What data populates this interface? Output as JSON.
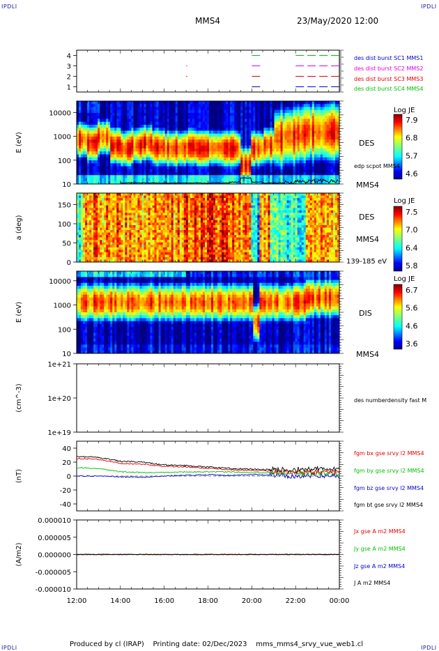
{
  "corners": {
    "tl": "IPDLI",
    "tr": "IPDLI",
    "bl": "IPDLI",
    "br": "IPDLI"
  },
  "header": {
    "spacecraft": "MMS4",
    "datetime": "23/May/2020 12:00"
  },
  "footer": {
    "produced_by": "Produced by cl (IRAP)",
    "printing_date": "Printing date: 02/Dec/2023",
    "script": "mms_mms4_srvy_vue_web1.cl"
  },
  "colors": {
    "red": "#e00000",
    "magenta": "#e000e0",
    "green": "#00c000",
    "blue": "#0000d0",
    "black": "#000000"
  },
  "chart_data": [
    {
      "type": "scatter",
      "panel": "availability",
      "yticks": [
        "1",
        "2",
        "3",
        "4"
      ],
      "ylim": [
        0.5,
        4.5
      ],
      "series": [
        {
          "name": "des dist burst SC1 MMS1",
          "level": 4,
          "color": "#0000d0",
          "intervals": [
            [
              20.0,
              20.4
            ],
            [
              22.0,
              24.0
            ]
          ]
        },
        {
          "name": "des dist burst SC2 MMS2",
          "level": 3,
          "color": "#e000e0",
          "intervals": [
            [
              17.0,
              17.05
            ],
            [
              20.0,
              20.4
            ],
            [
              22.0,
              24.0
            ]
          ]
        },
        {
          "name": "des dist burst SC3 MMS3",
          "level": 2,
          "color": "#e00000",
          "intervals": [
            [
              17.0,
              17.05
            ],
            [
              20.0,
              20.4
            ],
            [
              22.0,
              24.0
            ]
          ]
        },
        {
          "name": "des dist burst SC4 MMS4",
          "level": 1,
          "color": "#00c000",
          "intervals": [
            [
              20.0,
              20.4
            ],
            [
              22.0,
              24.0
            ]
          ]
        }
      ]
    },
    {
      "type": "heatmap",
      "panel": "des-energy",
      "ylabel": "E (eV)",
      "yscale": "log",
      "ylim": [
        10,
        30000
      ],
      "yticks": [
        "10",
        "100",
        "1000",
        "10000"
      ],
      "label": "DES",
      "colorbar": {
        "title": "Log JE",
        "ticks": [
          "7.9",
          "6.8",
          "5.7",
          "4.6"
        ],
        "range": [
          4.6,
          7.9
        ]
      },
      "overlay": {
        "name": "edp scpot MMS4",
        "color": "#000000",
        "values": [
          10,
          10,
          11,
          11,
          11,
          11,
          11,
          11,
          11,
          11,
          11,
          11,
          11,
          11,
          12,
          18,
          12,
          11,
          11,
          12,
          13,
          13,
          14,
          13
        ]
      },
      "peak_energy_by_hour": [
        700,
        500,
        900,
        400,
        300,
        400,
        500,
        350,
        300,
        300,
        350,
        300,
        320,
        300,
        300,
        60,
        300,
        400,
        800,
        1000,
        1200,
        1500,
        1500,
        1500
      ],
      "footer_label": "MMS4"
    },
    {
      "type": "heatmap",
      "panel": "des-pitch",
      "ylabel": "a (deg)",
      "ylim": [
        0,
        180
      ],
      "yticks": [
        "0",
        "50",
        "100",
        "150"
      ],
      "label": "DES",
      "sublabel": "MMS4",
      "energy_band": "139-185 eV",
      "colorbar": {
        "title": "Log JE",
        "ticks": [
          "7.5",
          "7.0",
          "6.4",
          "5.8"
        ],
        "range": [
          5.8,
          7.5
        ]
      }
    },
    {
      "type": "heatmap",
      "panel": "dis-energy",
      "ylabel": "E (eV)",
      "yscale": "log",
      "ylim": [
        10,
        25000
      ],
      "yticks": [
        "10",
        "100",
        "1000",
        "10000"
      ],
      "label": "DIS",
      "colorbar": {
        "title": "Log JE",
        "ticks": [
          "6.7",
          "5.6",
          "4.6",
          "3.6"
        ],
        "range": [
          3.6,
          6.7
        ]
      },
      "footer_label": "MMS4"
    },
    {
      "type": "line",
      "panel": "density",
      "ylabel": "(cm^-3)",
      "yscale": "log",
      "yticks": [
        "1e+19",
        "1e+20",
        "1e+21"
      ],
      "ylim": [
        1e+19,
        1e+21
      ],
      "series": [
        {
          "name": "des numberdensity fast M",
          "color": "#000000",
          "values": []
        }
      ]
    },
    {
      "type": "line",
      "panel": "magnetic-field",
      "ylabel": "(nT)",
      "ylim": [
        -50,
        50
      ],
      "yticks": [
        "40",
        "20",
        "0",
        "-20",
        "-40"
      ],
      "x_hours": [
        12,
        13,
        14,
        15,
        16,
        17,
        18,
        19,
        20,
        21,
        22,
        23,
        24
      ],
      "series": [
        {
          "name": "fgm bx gse srvy l2 MMS4",
          "color": "#e00000",
          "values": [
            25,
            24,
            18,
            17,
            14,
            13,
            11,
            9,
            8,
            7,
            5,
            6,
            5
          ]
        },
        {
          "name": "fgm by gse srvy l2 MMS4",
          "color": "#00c000",
          "values": [
            12,
            11,
            6,
            5,
            5,
            6,
            6,
            6,
            5,
            5,
            4,
            4,
            4
          ]
        },
        {
          "name": "fgm bz gse srvy l2 MMS4",
          "color": "#0000d0",
          "values": [
            0,
            0,
            -1,
            -2,
            0,
            1,
            2,
            1,
            2,
            1,
            0,
            1,
            0
          ]
        },
        {
          "name": "fgm bt gse srvy l2 MMS4",
          "color": "#000000",
          "values": [
            28,
            27,
            21,
            20,
            16,
            15,
            13,
            11,
            10,
            9,
            9,
            10,
            9
          ]
        }
      ]
    },
    {
      "type": "line",
      "panel": "current-density",
      "ylabel": "(A/m2)",
      "ylim": [
        -1e-05,
        1e-05
      ],
      "yticks": [
        "0.000010",
        "0.000005",
        "0.000000",
        "-0.000005",
        "-0.000010"
      ],
      "series": [
        {
          "name": "Jx gse A m2 MMS4",
          "color": "#e00000",
          "values": [
            0,
            0,
            0,
            0,
            0,
            0,
            0,
            0,
            0,
            0,
            0,
            0,
            0
          ]
        },
        {
          "name": "Jy gse A m2 MMS4",
          "color": "#00c000",
          "values": [
            0,
            0,
            0,
            0,
            0,
            0,
            0,
            0,
            0,
            0,
            0,
            0,
            0
          ]
        },
        {
          "name": "Jz gse A m2 MMS4",
          "color": "#0000d0",
          "values": [
            0,
            0,
            0,
            0,
            0,
            0,
            0,
            0,
            0,
            0,
            0,
            0,
            0
          ]
        },
        {
          "name": "J A m2 MMS4",
          "color": "#000000",
          "values": [
            0,
            0,
            0,
            0,
            0,
            0,
            0,
            0,
            0,
            0,
            0,
            0,
            0
          ]
        }
      ]
    }
  ],
  "xaxis": {
    "ticks": [
      "12:00",
      "14:00",
      "16:00",
      "18:00",
      "20:00",
      "22:00",
      "00:00"
    ],
    "range_hours": [
      12,
      24
    ]
  }
}
